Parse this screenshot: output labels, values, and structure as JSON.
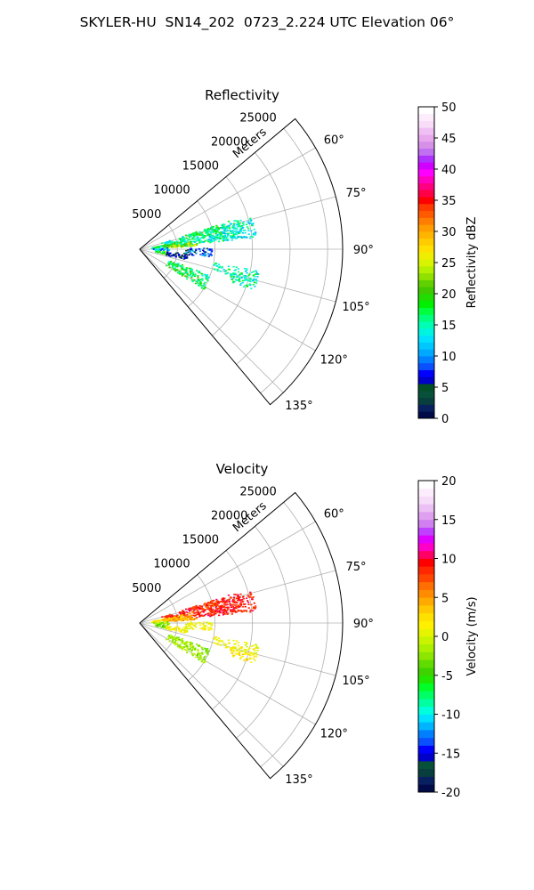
{
  "suptitle": "SKYLER-HU  SN14_202  0723_2.224 UTC Elevation 06°",
  "chart_data": [
    {
      "type": "polar-sector (radar PPI)",
      "title": "Reflectivity",
      "radial_label": "Meters",
      "radial_ticks": [
        5000,
        10000,
        15000,
        20000,
        25000
      ],
      "radial_tick_labels": [
        "5000",
        "10000",
        "15000",
        "20000",
        "25000"
      ],
      "rlim": [
        0,
        27000
      ],
      "azimuth_range_deg": [
        50,
        140
      ],
      "azimuth_ticks": [
        60,
        75,
        90,
        105,
        120,
        135
      ],
      "azimuth_tick_labels": [
        "60°",
        "75°",
        "90°",
        "105°",
        "120°",
        "135°"
      ],
      "grid": true,
      "colorbar": {
        "label": "Reflectivity dBZ",
        "range": [
          0,
          50
        ],
        "ticks": [
          0,
          5,
          10,
          15,
          20,
          25,
          30,
          35,
          40,
          45,
          50
        ],
        "tick_labels": [
          "0",
          "5",
          "10",
          "15",
          "20",
          "25",
          "30",
          "35",
          "40",
          "45",
          "50"
        ],
        "colors": [
          "#020b4a",
          "#08205f",
          "#083e3e",
          "#07513a",
          "#024f26",
          "#0000c8",
          "#0000ff",
          "#0a50ff",
          "#0080ff",
          "#00a8ff",
          "#00c8ff",
          "#00e1ff",
          "#00f5e0",
          "#00ffb4",
          "#00ff7d",
          "#00ff3c",
          "#00f000",
          "#20dc00",
          "#40c800",
          "#60d000",
          "#90e000",
          "#b4f000",
          "#d8f400",
          "#f0ee00",
          "#ffe000",
          "#ffcc00",
          "#ffb400",
          "#ff9c00",
          "#ff7d00",
          "#ff5a00",
          "#ff3a00",
          "#ff0000",
          "#ff0046",
          "#ff0080",
          "#ff00c0",
          "#ff00ff",
          "#d000ff",
          "#b030ff",
          "#c070f0",
          "#d690e8",
          "#e8a8ee",
          "#f0c0f4",
          "#f8dcf8",
          "#fcecfc",
          "#ffffff"
        ]
      },
      "echo_regions": [
        {
          "az": [
            72,
            84
          ],
          "range": [
            3000,
            14000
          ],
          "dbz": 15
        },
        {
          "az": [
            74,
            84
          ],
          "range": [
            9000,
            15500
          ],
          "dbz": 14
        },
        {
          "az": [
            78,
            86
          ],
          "range": [
            1500,
            7000
          ],
          "dbz": 18
        },
        {
          "az": [
            72,
            78
          ],
          "range": [
            7000,
            11000
          ],
          "dbz": 18
        },
        {
          "az": [
            82,
            86
          ],
          "range": [
            3000,
            7500
          ],
          "dbz": 24
        },
        {
          "az": [
            88,
            96
          ],
          "range": [
            6000,
            9500
          ],
          "dbz": 8
        },
        {
          "az": [
            86,
            92
          ],
          "range": [
            1500,
            4000
          ],
          "dbz": 11
        },
        {
          "az": [
            93,
            100
          ],
          "range": [
            2000,
            3500
          ],
          "dbz": 20
        },
        {
          "az": [
            110,
            122
          ],
          "range": [
            4000,
            10000
          ],
          "dbz": 17
        },
        {
          "az": [
            100,
            106
          ],
          "range": [
            10000,
            16000
          ],
          "dbz": 15
        },
        {
          "az": [
            104,
            110
          ],
          "range": [
            12500,
            16000
          ],
          "dbz": 15
        },
        {
          "az": [
            94,
            102
          ],
          "range": [
            3500,
            6500
          ],
          "dbz": 4
        }
      ]
    },
    {
      "type": "polar-sector (radar PPI)",
      "title": "Velocity",
      "radial_label": "Meters",
      "radial_ticks": [
        5000,
        10000,
        15000,
        20000,
        25000
      ],
      "radial_tick_labels": [
        "5000",
        "10000",
        "15000",
        "20000",
        "25000"
      ],
      "rlim": [
        0,
        27000
      ],
      "azimuth_range_deg": [
        50,
        140
      ],
      "azimuth_ticks": [
        60,
        75,
        90,
        105,
        120,
        135
      ],
      "azimuth_tick_labels": [
        "60°",
        "75°",
        "90°",
        "105°",
        "120°",
        "135°"
      ],
      "grid": true,
      "colorbar": {
        "label": "Velocity (m/s)",
        "range": [
          -20,
          20
        ],
        "ticks": [
          -20,
          -15,
          -10,
          -5,
          0,
          5,
          10,
          15,
          20
        ],
        "tick_labels": [
          "-20",
          "-15",
          "-10",
          "-5",
          "0",
          "5",
          "10",
          "15",
          "20"
        ],
        "colors": [
          "#020b4a",
          "#08205f",
          "#083e3e",
          "#07513a",
          "#0000c8",
          "#0000ff",
          "#0a50ff",
          "#0080ff",
          "#00b4ff",
          "#00e1ff",
          "#00ffdc",
          "#00ffa0",
          "#00ff64",
          "#00ff28",
          "#20e600",
          "#40d200",
          "#60dc00",
          "#8ce600",
          "#aaf000",
          "#c8f400",
          "#e6f400",
          "#fff000",
          "#ffe100",
          "#ffc800",
          "#ffaa00",
          "#ff8c00",
          "#ff6e00",
          "#ff4600",
          "#ff2800",
          "#ff0000",
          "#ff0064",
          "#ff00c8",
          "#e000ff",
          "#c040ff",
          "#d080f0",
          "#e0a0f0",
          "#ecc0f4",
          "#f6dcf8",
          "#fcecfc",
          "#ffffff"
        ]
      },
      "echo_regions": [
        {
          "az": [
            72,
            84
          ],
          "range": [
            3000,
            14000
          ],
          "vel": 9
        },
        {
          "az": [
            74,
            84
          ],
          "range": [
            9000,
            15500
          ],
          "vel": 9
        },
        {
          "az": [
            78,
            86
          ],
          "range": [
            1500,
            7000
          ],
          "vel": 3
        },
        {
          "az": [
            72,
            78
          ],
          "range": [
            7000,
            11000
          ],
          "vel": 8
        },
        {
          "az": [
            82,
            86
          ],
          "range": [
            3000,
            7500
          ],
          "vel": 5
        },
        {
          "az": [
            88,
            96
          ],
          "range": [
            6000,
            9500
          ],
          "vel": 1
        },
        {
          "az": [
            86,
            92
          ],
          "range": [
            1500,
            4000
          ],
          "vel": -2
        },
        {
          "az": [
            93,
            100
          ],
          "range": [
            2000,
            3500
          ],
          "vel": -3
        },
        {
          "az": [
            110,
            122
          ],
          "range": [
            4000,
            10000
          ],
          "vel": -2
        },
        {
          "az": [
            100,
            106
          ],
          "range": [
            10000,
            16000
          ],
          "vel": 1
        },
        {
          "az": [
            104,
            110
          ],
          "range": [
            12500,
            16000
          ],
          "vel": 2
        },
        {
          "az": [
            94,
            102
          ],
          "range": [
            3500,
            6500
          ],
          "vel": 1
        }
      ]
    }
  ]
}
